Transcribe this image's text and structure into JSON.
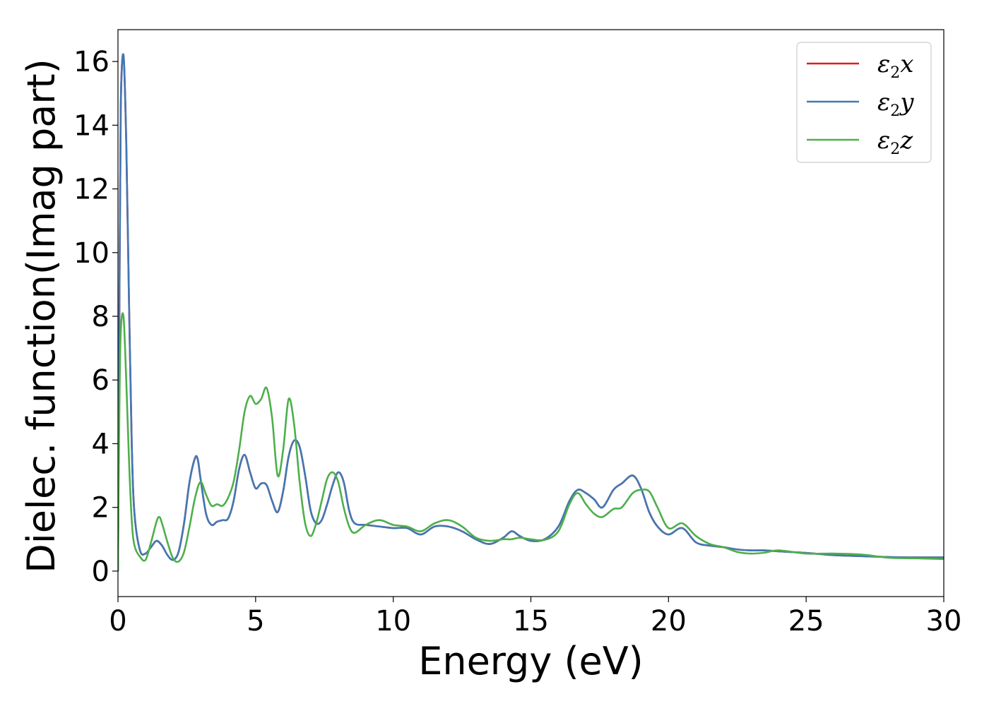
{
  "chart_data": {
    "type": "line",
    "xlabel": "Energy (eV)",
    "ylabel": "Dielec. function(Imag part)",
    "xlim": [
      0,
      30
    ],
    "ylim": [
      -0.8,
      17
    ],
    "xticks": [
      0,
      5,
      10,
      15,
      20,
      25,
      30
    ],
    "yticks": [
      0,
      2,
      4,
      6,
      8,
      10,
      12,
      14,
      16
    ],
    "grid": false,
    "legend_position": "top-right",
    "series": [
      {
        "name": "ε2x",
        "legend": {
          "base": "ε",
          "sub": "2",
          "axis": "x"
        },
        "color": "#e41a1c",
        "x": [
          0,
          0.05,
          0.1,
          0.2,
          0.3,
          0.4,
          0.5,
          0.6,
          0.8,
          1.0,
          1.2,
          1.4,
          1.6,
          1.8,
          2.0,
          2.2,
          2.4,
          2.6,
          2.8,
          2.9,
          3.0,
          3.2,
          3.4,
          3.6,
          3.8,
          4.0,
          4.2,
          4.4,
          4.6,
          4.8,
          5.0,
          5.2,
          5.4,
          5.6,
          5.8,
          6.0,
          6.2,
          6.4,
          6.6,
          6.8,
          7.0,
          7.2,
          7.4,
          7.6,
          7.8,
          8.0,
          8.2,
          8.4,
          8.6,
          9.0,
          9.5,
          10.0,
          10.5,
          11.0,
          11.5,
          12.0,
          12.5,
          13.0,
          13.5,
          14.0,
          14.3,
          14.6,
          15.0,
          15.5,
          16.0,
          16.4,
          16.7,
          17.0,
          17.3,
          17.6,
          18.0,
          18.3,
          18.7,
          19.0,
          19.3,
          19.6,
          20.0,
          20.5,
          21.0,
          21.5,
          22.0,
          22.5,
          23.0,
          23.5,
          24.0,
          25.0,
          26.0,
          27.0,
          28.0,
          29.0,
          30.0
        ],
        "values": [
          0.0,
          8.0,
          14.5,
          16.2,
          13.5,
          8.5,
          4.0,
          1.8,
          0.65,
          0.55,
          0.75,
          0.95,
          0.8,
          0.5,
          0.35,
          0.6,
          1.5,
          2.8,
          3.55,
          3.5,
          2.9,
          1.8,
          1.45,
          1.55,
          1.6,
          1.65,
          2.2,
          3.2,
          3.65,
          3.1,
          2.6,
          2.75,
          2.7,
          2.2,
          1.85,
          2.5,
          3.6,
          4.1,
          3.9,
          3.0,
          1.9,
          1.5,
          1.6,
          2.1,
          2.7,
          3.1,
          2.8,
          1.9,
          1.5,
          1.45,
          1.4,
          1.35,
          1.35,
          1.15,
          1.4,
          1.4,
          1.25,
          1.0,
          0.85,
          1.05,
          1.25,
          1.1,
          0.95,
          1.0,
          1.4,
          2.2,
          2.55,
          2.45,
          2.25,
          2.0,
          2.55,
          2.75,
          3.0,
          2.6,
          1.85,
          1.4,
          1.15,
          1.35,
          0.9,
          0.8,
          0.75,
          0.68,
          0.65,
          0.65,
          0.62,
          0.57,
          0.5,
          0.47,
          0.44,
          0.43,
          0.43
        ]
      },
      {
        "name": "ε2y",
        "legend": {
          "base": "ε",
          "sub": "2",
          "axis": "y"
        },
        "color": "#4178b5",
        "x": [
          0,
          0.05,
          0.1,
          0.2,
          0.3,
          0.4,
          0.5,
          0.6,
          0.8,
          1.0,
          1.2,
          1.4,
          1.6,
          1.8,
          2.0,
          2.2,
          2.4,
          2.6,
          2.8,
          2.9,
          3.0,
          3.2,
          3.4,
          3.6,
          3.8,
          4.0,
          4.2,
          4.4,
          4.6,
          4.8,
          5.0,
          5.2,
          5.4,
          5.6,
          5.8,
          6.0,
          6.2,
          6.4,
          6.6,
          6.8,
          7.0,
          7.2,
          7.4,
          7.6,
          7.8,
          8.0,
          8.2,
          8.4,
          8.6,
          9.0,
          9.5,
          10.0,
          10.5,
          11.0,
          11.5,
          12.0,
          12.5,
          13.0,
          13.5,
          14.0,
          14.3,
          14.6,
          15.0,
          15.5,
          16.0,
          16.4,
          16.7,
          17.0,
          17.3,
          17.6,
          18.0,
          18.3,
          18.7,
          19.0,
          19.3,
          19.6,
          20.0,
          20.5,
          21.0,
          21.5,
          22.0,
          22.5,
          23.0,
          23.5,
          24.0,
          25.0,
          26.0,
          27.0,
          28.0,
          29.0,
          30.0
        ],
        "values": [
          0.0,
          8.0,
          14.5,
          16.2,
          13.5,
          8.5,
          4.0,
          1.8,
          0.65,
          0.55,
          0.75,
          0.95,
          0.8,
          0.5,
          0.35,
          0.6,
          1.5,
          2.8,
          3.55,
          3.5,
          2.9,
          1.8,
          1.45,
          1.55,
          1.6,
          1.65,
          2.2,
          3.2,
          3.65,
          3.1,
          2.6,
          2.75,
          2.7,
          2.2,
          1.85,
          2.5,
          3.6,
          4.1,
          3.9,
          3.0,
          1.9,
          1.5,
          1.6,
          2.1,
          2.7,
          3.1,
          2.8,
          1.9,
          1.5,
          1.45,
          1.4,
          1.35,
          1.35,
          1.15,
          1.4,
          1.4,
          1.25,
          1.0,
          0.85,
          1.05,
          1.25,
          1.1,
          0.95,
          1.0,
          1.4,
          2.2,
          2.55,
          2.45,
          2.25,
          2.0,
          2.55,
          2.75,
          3.0,
          2.6,
          1.85,
          1.4,
          1.15,
          1.35,
          0.9,
          0.8,
          0.75,
          0.68,
          0.65,
          0.65,
          0.62,
          0.57,
          0.5,
          0.47,
          0.44,
          0.43,
          0.43
        ]
      },
      {
        "name": "ε2z",
        "legend": {
          "base": "ε",
          "sub": "2",
          "axis": "z"
        },
        "color": "#4daf4a",
        "x": [
          0,
          0.05,
          0.1,
          0.2,
          0.3,
          0.4,
          0.5,
          0.6,
          0.8,
          1.0,
          1.2,
          1.4,
          1.5,
          1.6,
          1.8,
          2.0,
          2.2,
          2.4,
          2.6,
          2.8,
          3.0,
          3.2,
          3.4,
          3.6,
          3.8,
          4.0,
          4.2,
          4.4,
          4.6,
          4.8,
          5.0,
          5.2,
          5.4,
          5.6,
          5.8,
          6.0,
          6.2,
          6.4,
          6.6,
          6.8,
          7.0,
          7.2,
          7.4,
          7.6,
          7.8,
          8.0,
          8.2,
          8.4,
          8.6,
          9.0,
          9.5,
          10.0,
          10.5,
          11.0,
          11.5,
          12.0,
          12.5,
          13.0,
          13.5,
          14.0,
          14.3,
          14.6,
          15.0,
          15.5,
          16.0,
          16.4,
          16.7,
          17.0,
          17.3,
          17.6,
          18.0,
          18.3,
          18.7,
          19.0,
          19.3,
          19.6,
          20.0,
          20.5,
          21.0,
          21.5,
          22.0,
          22.5,
          23.0,
          23.5,
          24.0,
          25.0,
          26.0,
          27.0,
          28.0,
          29.0,
          30.0
        ],
        "values": [
          0.0,
          5.0,
          7.5,
          8.0,
          6.0,
          3.5,
          1.6,
          0.8,
          0.45,
          0.35,
          0.9,
          1.55,
          1.7,
          1.5,
          0.9,
          0.4,
          0.3,
          0.6,
          1.4,
          2.3,
          2.8,
          2.4,
          2.05,
          2.1,
          2.05,
          2.3,
          2.8,
          3.8,
          5.0,
          5.5,
          5.25,
          5.4,
          5.75,
          4.8,
          3.0,
          3.8,
          5.4,
          4.6,
          2.8,
          1.5,
          1.1,
          1.5,
          2.2,
          2.9,
          3.1,
          2.8,
          2.0,
          1.4,
          1.2,
          1.45,
          1.6,
          1.45,
          1.4,
          1.25,
          1.5,
          1.6,
          1.4,
          1.05,
          0.95,
          1.0,
          1.0,
          1.05,
          1.0,
          0.98,
          1.25,
          2.1,
          2.45,
          2.1,
          1.8,
          1.7,
          1.95,
          2.0,
          2.45,
          2.55,
          2.5,
          2.0,
          1.35,
          1.5,
          1.1,
          0.85,
          0.75,
          0.6,
          0.55,
          0.58,
          0.65,
          0.55,
          0.55,
          0.52,
          0.42,
          0.4,
          0.38
        ]
      }
    ]
  }
}
